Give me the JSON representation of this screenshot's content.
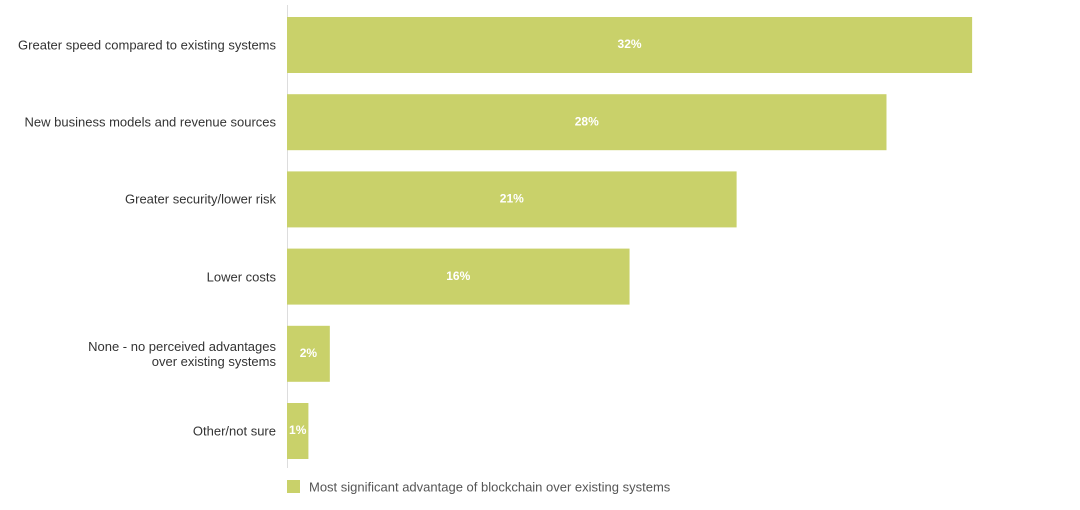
{
  "chart_data": {
    "type": "hbar",
    "categories": [
      "Greater speed compared to existing systems",
      "New business models and revenue sources",
      "Greater security/lower risk",
      "Lower costs",
      "None - no perceived advantages\nover existing systems",
      "Other/not sure"
    ],
    "series": [
      {
        "name": "Most significant advantage of blockchain over existing systems",
        "color": "#c9d16a",
        "values": [
          32,
          28,
          21,
          16,
          2,
          1
        ],
        "value_labels": [
          "32%",
          "28%",
          "21%",
          "16%",
          "2%",
          "1%"
        ]
      }
    ]
  }
}
